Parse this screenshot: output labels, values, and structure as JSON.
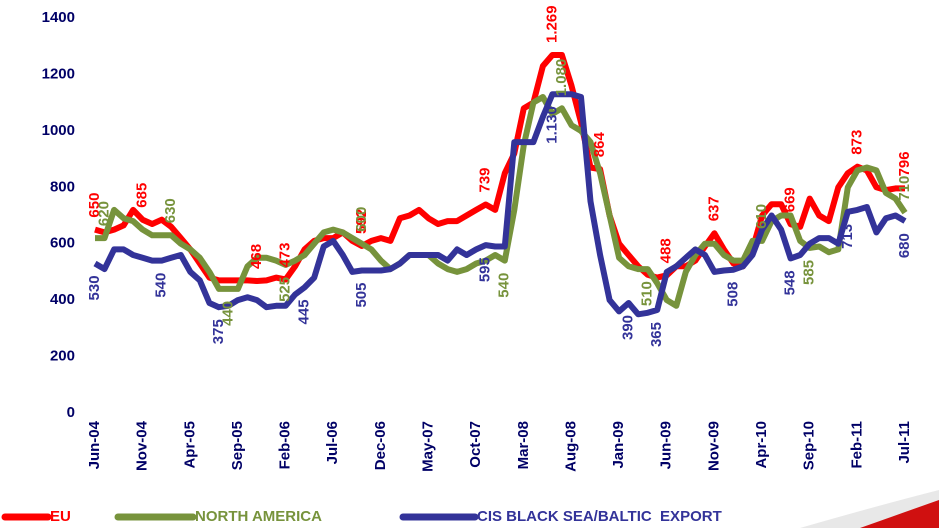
{
  "chart_data": {
    "type": "line",
    "categories": [
      "Jun-04",
      null,
      null,
      null,
      null,
      "Nov-04",
      null,
      null,
      null,
      null,
      "Apr-05",
      null,
      null,
      null,
      null,
      "Sep-05",
      null,
      null,
      null,
      null,
      "Feb-06",
      null,
      null,
      null,
      null,
      "Jul-06",
      null,
      null,
      null,
      null,
      "Dec-06",
      null,
      null,
      null,
      null,
      "May-07",
      null,
      null,
      null,
      null,
      "Oct-07",
      null,
      null,
      null,
      null,
      "Mar-08",
      null,
      null,
      null,
      null,
      "Aug-08",
      null,
      null,
      null,
      null,
      "Jan-09",
      null,
      null,
      null,
      null,
      "Jun-09",
      null,
      null,
      null,
      null,
      "Nov-09",
      null,
      null,
      null,
      null,
      "Apr-10",
      null,
      null,
      null,
      null,
      "Sep-10",
      null,
      null,
      null,
      null,
      "Feb-11",
      null,
      null,
      null,
      null,
      "Jul-11"
    ],
    "series": [
      {
        "name": "EU",
        "color": "#ff0000",
        "values": [
          650,
          640,
          650,
          665,
          720,
          685,
          670,
          685,
          660,
          620,
          580,
          530,
          480,
          470,
          470,
          470,
          470,
          468,
          470,
          480,
          473,
          520,
          580,
          610,
          620,
          620,
          640,
          610,
          592,
          610,
          620,
          610,
          690,
          700,
          720,
          690,
          670,
          680,
          680,
          700,
          720,
          739,
          720,
          850,
          920,
          1080,
          1100,
          1230,
          1269,
          1269,
          1160,
          1030,
          870,
          864,
          700,
          600,
          560,
          520,
          490,
          480,
          488,
          520,
          520,
          540,
          590,
          637,
          580,
          530,
          520,
          580,
          700,
          740,
          740,
          669,
          660,
          760,
          700,
          680,
          800,
          850,
          873,
          860,
          800,
          790,
          796,
          796
        ],
        "value_labels": [
          "650",
          null,
          null,
          null,
          null,
          "685",
          null,
          null,
          null,
          null,
          null,
          null,
          null,
          null,
          null,
          null,
          null,
          "468",
          null,
          null,
          "473",
          null,
          null,
          null,
          null,
          null,
          null,
          null,
          "592",
          null,
          null,
          null,
          null,
          null,
          null,
          null,
          null,
          null,
          null,
          null,
          null,
          "739",
          null,
          null,
          null,
          null,
          null,
          null,
          "1.269",
          null,
          null,
          null,
          null,
          "864",
          null,
          null,
          null,
          null,
          null,
          null,
          "488",
          null,
          null,
          null,
          null,
          "637",
          null,
          null,
          null,
          null,
          null,
          null,
          null,
          "669",
          null,
          null,
          null,
          null,
          null,
          null,
          "873",
          null,
          null,
          null,
          null,
          "796"
        ]
      },
      {
        "name": "NORTH AMERICA",
        "color": "#77933c",
        "values": [
          620,
          620,
          720,
          690,
          680,
          650,
          630,
          630,
          630,
          600,
          580,
          550,
          500,
          440,
          440,
          440,
          520,
          550,
          550,
          540,
          525,
          540,
          560,
          600,
          640,
          650,
          640,
          620,
          600,
          580,
          540,
          510,
          530,
          560,
          560,
          560,
          530,
          510,
          500,
          510,
          530,
          540,
          560,
          540,
          720,
          950,
          1100,
          1120,
          1060,
          1080,
          1020,
          1000,
          960,
          850,
          700,
          550,
          520,
          510,
          510,
          460,
          400,
          380,
          500,
          560,
          600,
          600,
          560,
          540,
          540,
          610,
          610,
          680,
          700,
          700,
          610,
          585,
          590,
          570,
          580,
          800,
          860,
          870,
          860,
          780,
          760,
          710
        ],
        "value_labels": [
          null,
          "620",
          null,
          null,
          null,
          null,
          null,
          null,
          "630",
          null,
          null,
          null,
          null,
          null,
          "440",
          null,
          null,
          null,
          null,
          null,
          "525",
          null,
          null,
          null,
          null,
          null,
          null,
          null,
          "600",
          null,
          null,
          null,
          null,
          null,
          null,
          null,
          null,
          null,
          null,
          null,
          null,
          null,
          null,
          "540",
          null,
          null,
          null,
          null,
          null,
          "1.080",
          null,
          null,
          null,
          null,
          null,
          null,
          null,
          null,
          "510",
          null,
          null,
          null,
          null,
          null,
          null,
          null,
          null,
          null,
          null,
          null,
          "610",
          null,
          null,
          null,
          null,
          "585",
          null,
          null,
          null,
          null,
          null,
          null,
          null,
          null,
          null,
          "710"
        ]
      },
      {
        "name": "CIS BLACK SEA/BALTIC  EXPORT",
        "color": "#333399",
        "values": [
          530,
          510,
          580,
          580,
          560,
          550,
          540,
          540,
          550,
          560,
          500,
          470,
          390,
          375,
          380,
          400,
          410,
          400,
          375,
          380,
          380,
          420,
          445,
          480,
          590,
          610,
          560,
          500,
          505,
          505,
          505,
          510,
          530,
          560,
          560,
          560,
          560,
          540,
          580,
          560,
          580,
          595,
          590,
          590,
          960,
          960,
          960,
          1050,
          1130,
          1130,
          1130,
          1120,
          750,
          560,
          400,
          360,
          390,
          350,
          355,
          365,
          500,
          520,
          550,
          580,
          560,
          500,
          505,
          508,
          520,
          560,
          650,
          700,
          650,
          548,
          560,
          600,
          620,
          620,
          600,
          713,
          720,
          730,
          640,
          690,
          700,
          680
        ],
        "value_labels": [
          "530",
          null,
          null,
          null,
          null,
          null,
          null,
          "540",
          null,
          null,
          null,
          null,
          null,
          "375",
          null,
          null,
          null,
          null,
          null,
          null,
          null,
          null,
          "445",
          null,
          null,
          null,
          null,
          null,
          "505",
          null,
          null,
          null,
          null,
          null,
          null,
          null,
          null,
          null,
          null,
          null,
          null,
          "595",
          null,
          null,
          null,
          null,
          null,
          null,
          "1.130",
          null,
          null,
          null,
          null,
          null,
          null,
          null,
          "390",
          null,
          null,
          "365",
          null,
          null,
          null,
          null,
          null,
          null,
          null,
          "508",
          null,
          null,
          null,
          null,
          null,
          "548",
          null,
          null,
          null,
          null,
          null,
          "713",
          null,
          null,
          null,
          null,
          null,
          "680"
        ]
      }
    ],
    "ylim": [
      0,
      1400
    ],
    "yticks": [
      0,
      200,
      400,
      600,
      800,
      1000,
      1200,
      1400
    ],
    "grid": false,
    "legend": "bottom"
  }
}
